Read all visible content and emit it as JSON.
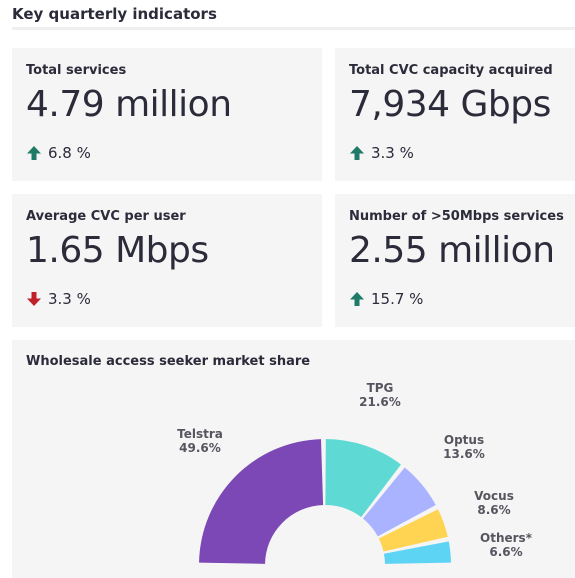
{
  "page": {
    "title": "Key quarterly indicators"
  },
  "kpis": [
    {
      "label": "Total services",
      "value": "4.79 million",
      "change": "6.8 %",
      "direction": "up"
    },
    {
      "label": "Total CVC capacity acquired",
      "value": "7,934 Gbps",
      "change": "3.3 %",
      "direction": "up"
    },
    {
      "label": "Average CVC per user",
      "value": "1.65 Mbps",
      "change": "3.3 %",
      "direction": "down"
    },
    {
      "label": "Number of >50Mbps services",
      "value": "2.55 million",
      "change": "15.7 %",
      "direction": "up"
    }
  ],
  "colors": {
    "up": "#1f7a67",
    "down": "#c0202a",
    "card_bg": "#f5f5f5"
  },
  "icons": {
    "up": "arrow-up-icon",
    "down": "arrow-down-icon"
  },
  "chart_data": {
    "type": "pie",
    "title": "Wholesale access seeker market share",
    "style": "half-donut",
    "categories": [
      "Telstra",
      "TPG",
      "Optus",
      "Vocus",
      "Others*"
    ],
    "values": [
      49.6,
      21.6,
      13.6,
      8.6,
      6.6
    ],
    "labels": [
      "49.6%",
      "21.6%",
      "13.6%",
      "8.6%",
      "6.6%"
    ],
    "colors": [
      "#7b48b5",
      "#5ed9d4",
      "#aab3ff",
      "#ffd452",
      "#5ed4f5"
    ]
  }
}
